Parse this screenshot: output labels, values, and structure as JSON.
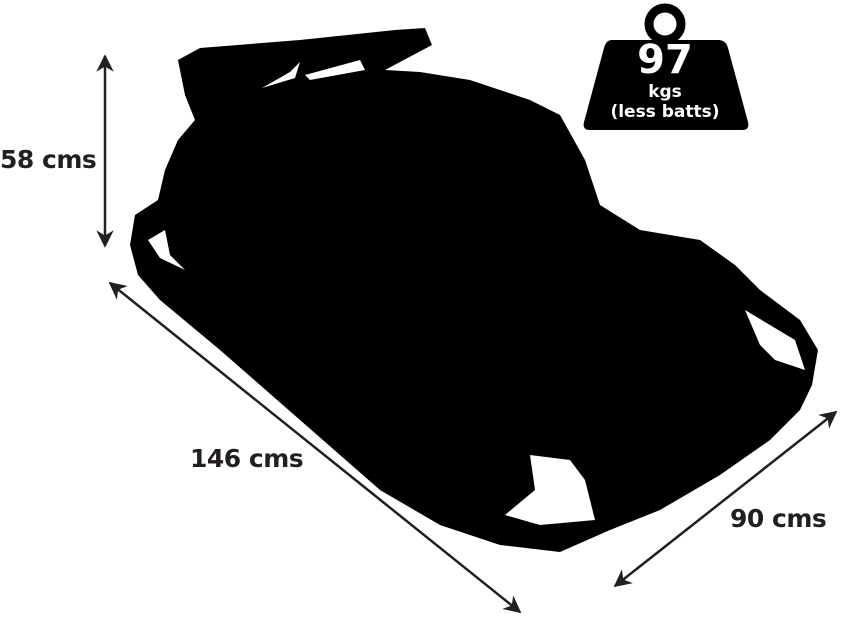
{
  "dimensions": {
    "height": "58 cms",
    "length": "146 cms",
    "width": "90 cms"
  },
  "weight": {
    "value": "97",
    "unit": "kgs",
    "note": "(less batts)"
  },
  "colors": {
    "silhouette": "#000000",
    "text": "#231f20",
    "arrow": "#231f20"
  },
  "icons": [
    "go-kart-silhouette",
    "weight-icon",
    "double-arrow"
  ]
}
